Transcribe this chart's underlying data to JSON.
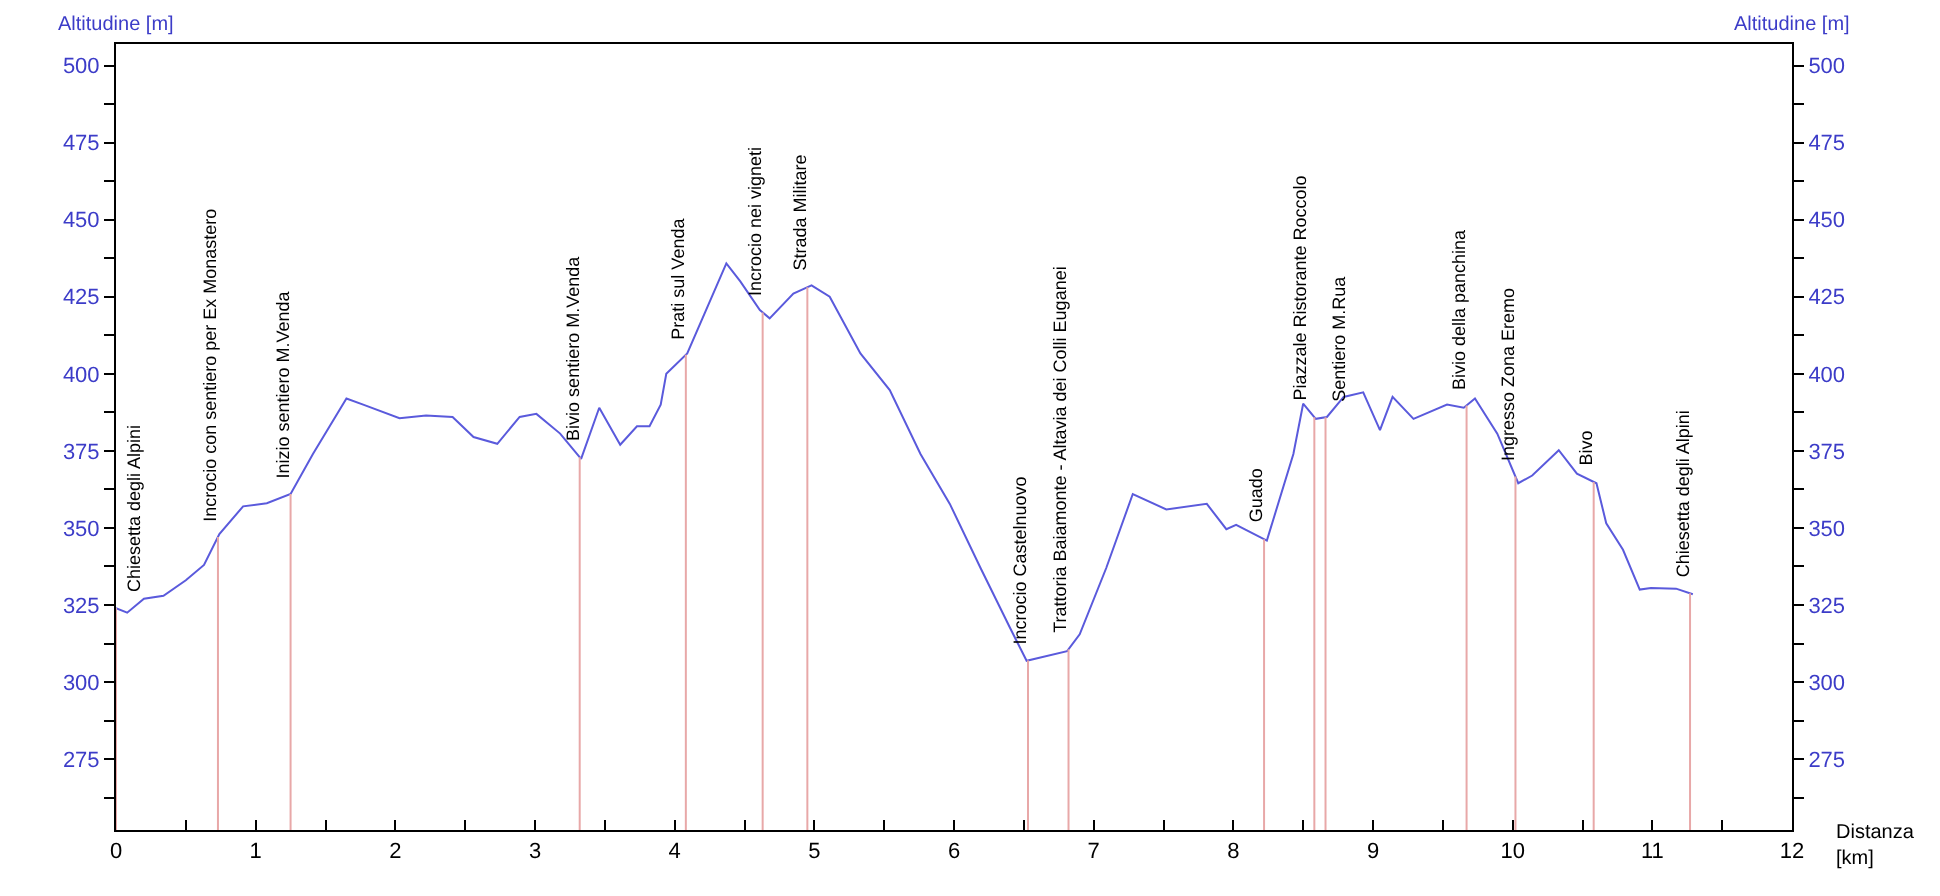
{
  "chart_data": {
    "type": "line",
    "xlabel": "Distanza [km]",
    "ylabel": "Altitudine [m]",
    "y2label": "Altitudine [m]",
    "x": [
      0,
      0.08,
      0.2,
      0.34,
      0.5,
      0.63,
      0.74,
      0.91,
      1.08,
      1.25,
      1.41,
      1.65,
      1.77,
      2.03,
      2.22,
      2.41,
      2.56,
      2.73,
      2.89,
      3.01,
      3.18,
      3.33,
      3.46,
      3.61,
      3.73,
      3.82,
      3.9,
      3.94,
      4.09,
      4.37,
      4.47,
      4.61,
      4.68,
      4.85,
      4.98,
      5.11,
      5.33,
      5.54,
      5.76,
      5.97,
      6.19,
      6.4,
      6.52,
      6.81,
      6.9,
      7.09,
      7.28,
      7.52,
      7.81,
      7.95,
      8.02,
      8.24,
      8.43,
      8.5,
      8.59,
      8.67,
      8.79,
      8.93,
      9.05,
      9.14,
      9.29,
      9.53,
      9.65,
      9.73,
      9.89,
      10.04,
      10.14,
      10.33,
      10.46,
      10.6,
      10.67,
      10.79,
      10.91,
      10.99,
      11.17,
      11.29
    ],
    "series": [
      {
        "color": "#5a5adc",
        "values": [
          324,
          322.5,
          327,
          328,
          333,
          338,
          348,
          357,
          358,
          361,
          374,
          392,
          390,
          385.6,
          386.5,
          386,
          379.5,
          377.3,
          386,
          387,
          380.6,
          372.4,
          389,
          377,
          383,
          383,
          390,
          400,
          406.6,
          435.8,
          430,
          420.7,
          418,
          426,
          428.7,
          425,
          406.6,
          394.7,
          374,
          357.8,
          337,
          317.7,
          306.9,
          310,
          315.5,
          337,
          361,
          356,
          357.8,
          349.6,
          351,
          345.9,
          374,
          390.3,
          385.4,
          386,
          392.5,
          394,
          381.7,
          392.5,
          385.4,
          390,
          389,
          392,
          380.6,
          364.5,
          367,
          375.2,
          367.6,
          364.5,
          351.5,
          342.9,
          330,
          330.5,
          330.3,
          328.5
        ]
      }
    ],
    "xlim": [
      0,
      12
    ],
    "xticks": [
      0,
      {
        "value": 0.5,
        "label": null
      },
      1,
      {
        "value": 1.5,
        "label": null
      },
      2,
      {
        "value": 2.5,
        "label": null
      },
      3,
      {
        "value": 3.5,
        "label": null
      },
      4,
      {
        "value": 4.5,
        "label": null
      },
      5,
      {
        "value": 5.5,
        "label": null
      },
      6,
      {
        "value": 6.5,
        "label": null
      },
      7,
      {
        "value": 7.5,
        "label": null
      },
      8,
      {
        "value": 8.5,
        "label": null
      },
      9,
      {
        "value": 9.5,
        "label": null
      },
      10,
      {
        "value": 10.5,
        "label": null
      },
      11,
      {
        "value": 11.5,
        "label": null
      },
      12
    ],
    "ylim": [
      252,
      507
    ],
    "yticks": [
      {
        "value": 262.5,
        "label": null
      },
      275,
      {
        "value": 287.5,
        "label": null
      },
      300,
      {
        "value": 312.5,
        "label": null
      },
      325,
      {
        "value": 337.5,
        "label": null
      },
      350,
      {
        "value": 362.5,
        "label": null
      },
      375,
      {
        "value": 387.5,
        "label": null
      },
      400,
      {
        "value": 412.5,
        "label": null
      },
      425,
      {
        "value": 437.5,
        "label": null
      },
      450,
      {
        "value": 462.5,
        "label": null
      },
      475,
      {
        "value": 487.5,
        "label": null
      },
      500
    ],
    "y2lim": [
      252,
      507
    ],
    "y2ticks": [
      {
        "value": 262.5,
        "label": null
      },
      275,
      {
        "value": 287.5,
        "label": null
      },
      300,
      {
        "value": 312.5,
        "label": null
      },
      325,
      {
        "value": 337.5,
        "label": null
      },
      350,
      {
        "value": 362.5,
        "label": null
      },
      375,
      {
        "value": 387.5,
        "label": null
      },
      400,
      {
        "value": 412.5,
        "label": null
      },
      425,
      {
        "value": 437.5,
        "label": null
      },
      450,
      {
        "value": 462.5,
        "label": null
      },
      475,
      {
        "value": 487.5,
        "label": null
      },
      500
    ],
    "ref_lines": [
      {
        "axis": "x",
        "value": 0,
        "label": "Chiesetta degli Alpini",
        "color": "#e8a8a8"
      },
      {
        "axis": "x",
        "value": 0.73,
        "label": "Incrocio con sentiero per Ex Monastero",
        "color": "#e8a8a8"
      },
      {
        "axis": "x",
        "value": 1.25,
        "label": "Inizio sentiero M.Venda",
        "color": "#e8a8a8"
      },
      {
        "axis": "x",
        "value": 3.32,
        "label": "Bivio sentiero M.Venda",
        "color": "#e8a8a8"
      },
      {
        "axis": "x",
        "value": 4.08,
        "label": "Prati sul Venda",
        "color": "#e8a8a8"
      },
      {
        "axis": "x",
        "value": 4.63,
        "label": "Incrocio nei vigneti",
        "color": "#e8a8a8"
      },
      {
        "axis": "x",
        "value": 4.95,
        "label": "Strada Militare",
        "color": "#e8a8a8"
      },
      {
        "axis": "x",
        "value": 6.53,
        "label": "Incrocio Castelnuovo",
        "color": "#e8a8a8"
      },
      {
        "axis": "x",
        "value": 6.82,
        "label": "Trattoria Baiamonte - Altavia dei Colli Euganei",
        "color": "#e8a8a8"
      },
      {
        "axis": "x",
        "value": 8.22,
        "label": "Guado",
        "color": "#e8a8a8"
      },
      {
        "axis": "x",
        "value": 8.58,
        "label": "Piazzale Ristorante Roccolo",
        "color": "#e8a8a8"
      },
      {
        "axis": "x",
        "value": 8.66,
        "label": "Sentiero M.Rua",
        "color": "#e8a8a8"
      },
      {
        "axis": "x",
        "value": 9.67,
        "label": "Bivio della panchina",
        "color": "#e8a8a8"
      },
      {
        "axis": "x",
        "value": 10.02,
        "label": "Ingresso Zona Eremo",
        "color": "#e8a8a8"
      },
      {
        "axis": "x",
        "value": 10.58,
        "label": "Bivo",
        "color": "#e8a8a8"
      },
      {
        "axis": "x",
        "value": 11.27,
        "label": "Chiesetta degli Alpini",
        "color": "#e8a8a8"
      }
    ]
  }
}
